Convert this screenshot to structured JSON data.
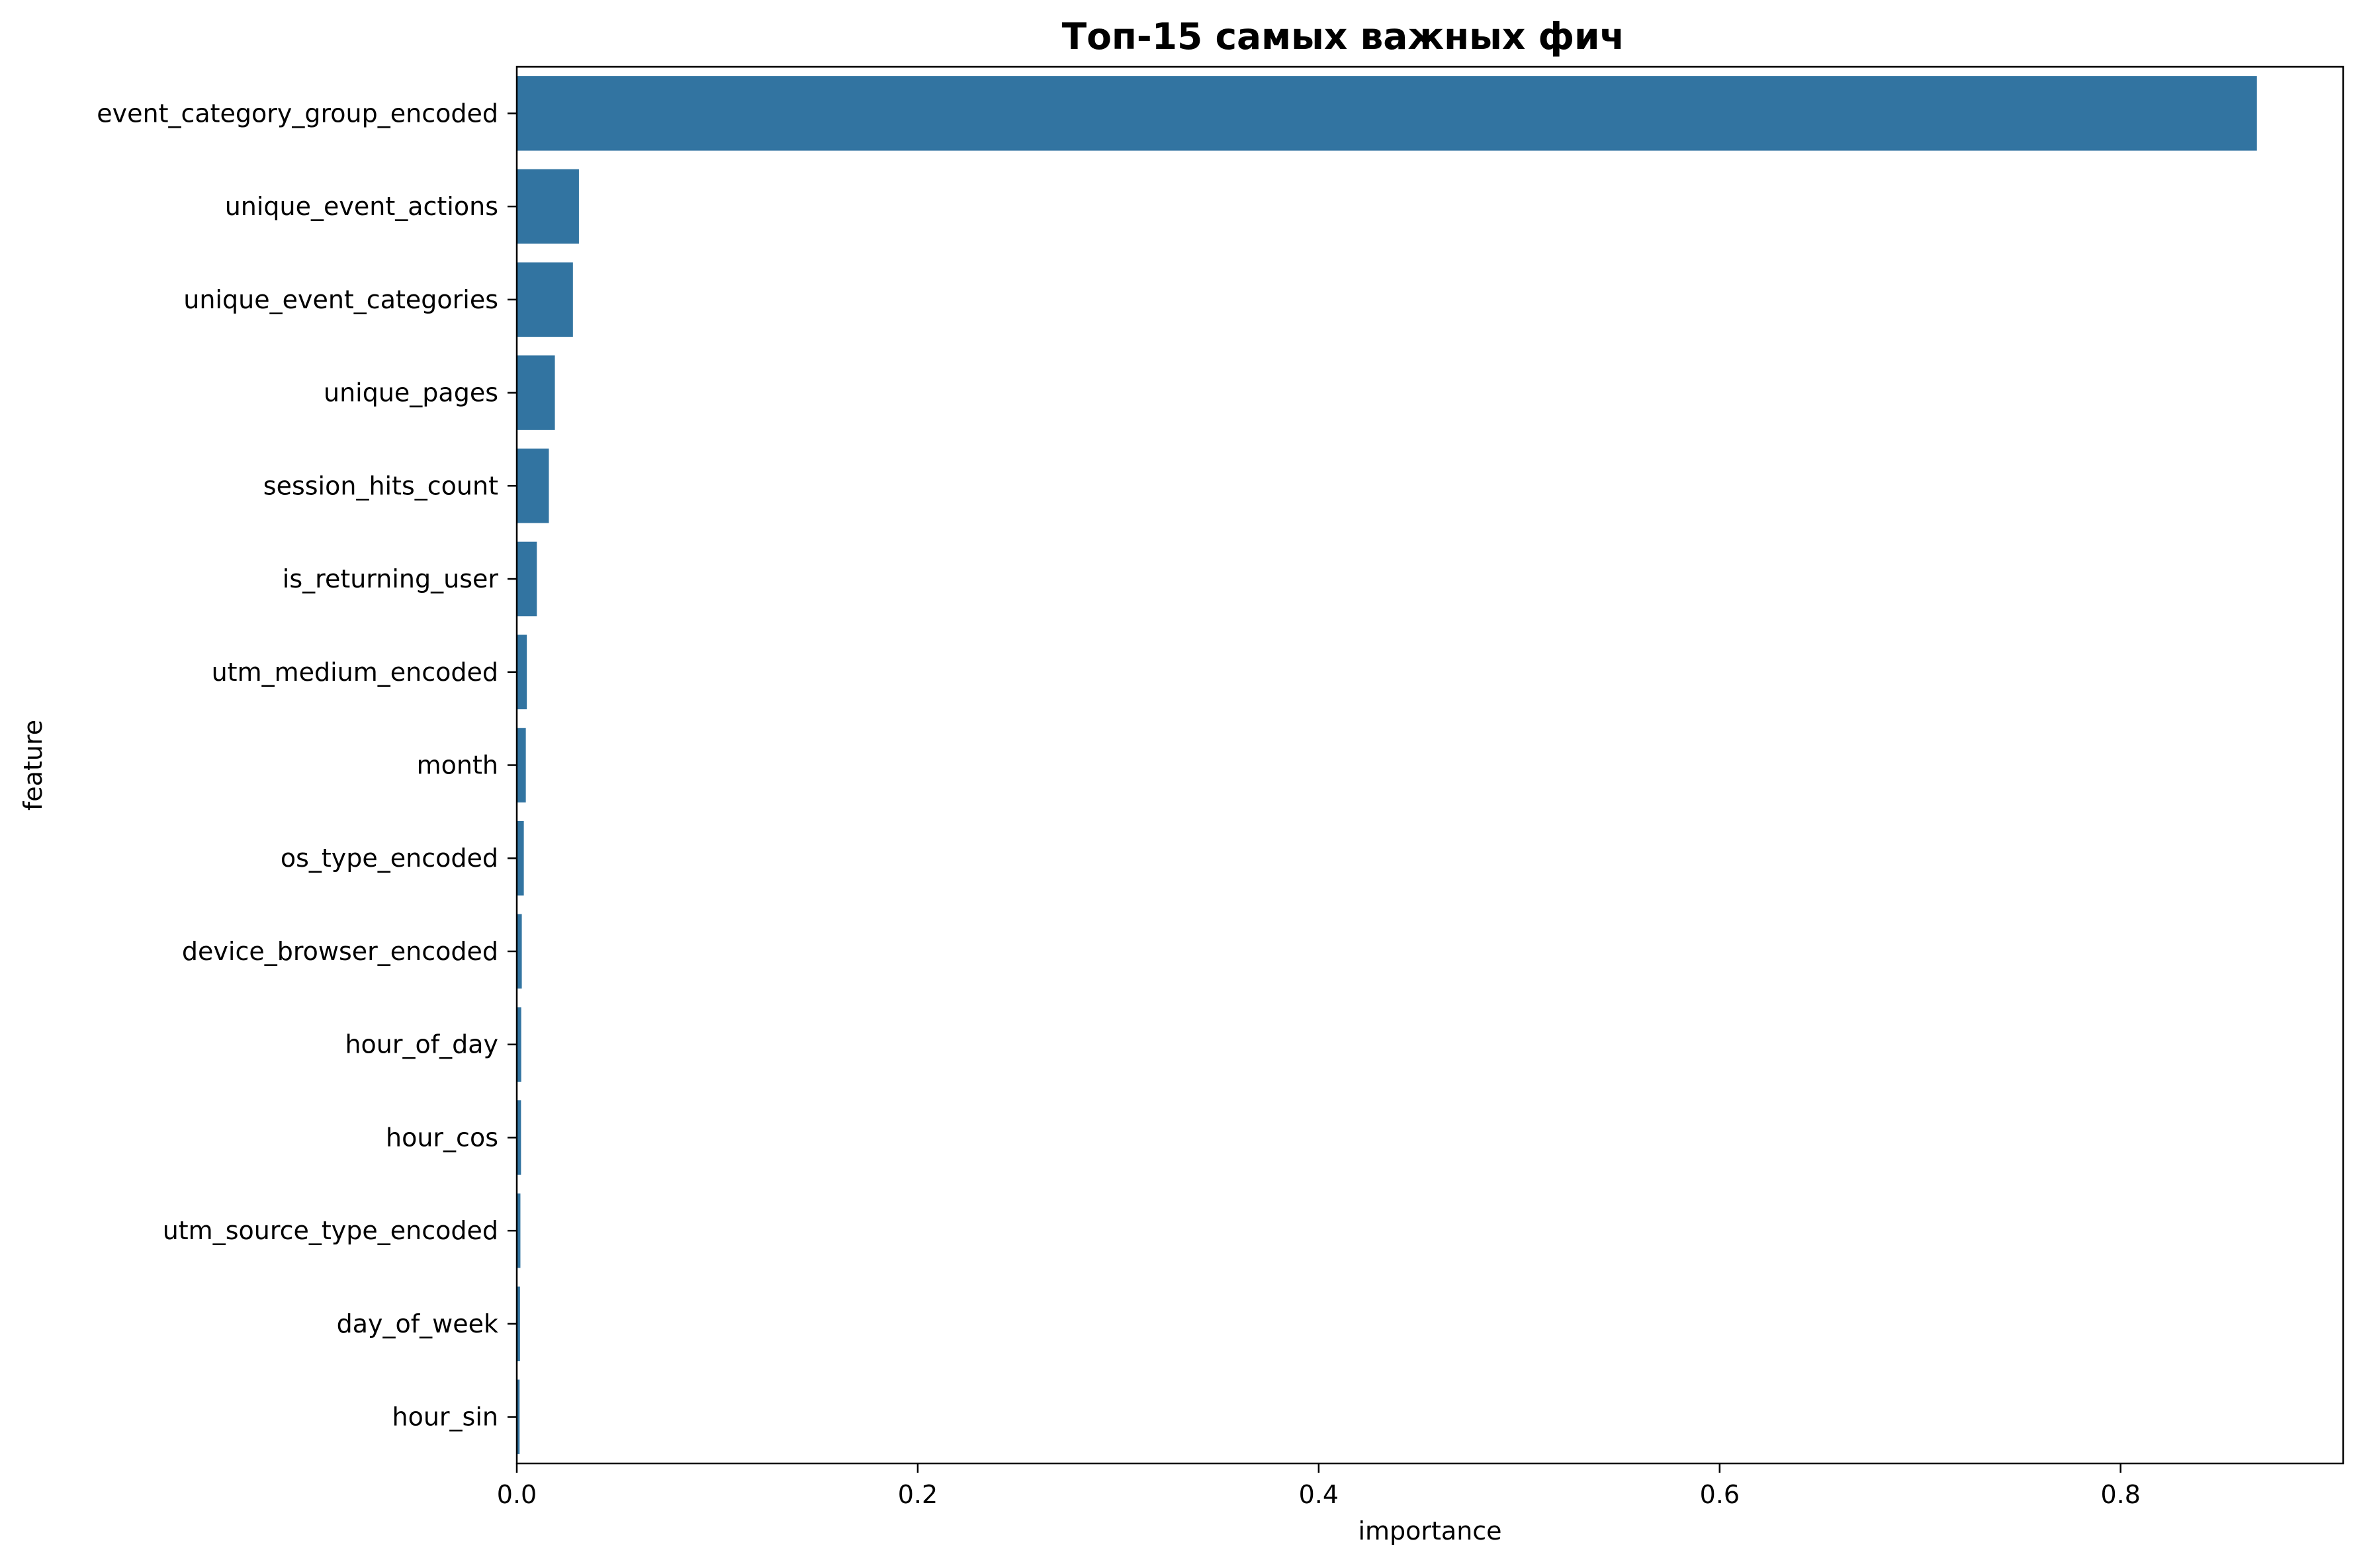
{
  "chart_data": {
    "type": "bar",
    "orientation": "horizontal",
    "title": "Топ-15 самых важных фич",
    "xlabel": "importance",
    "ylabel": "feature",
    "categories": [
      "event_category_group_encoded",
      "unique_event_actions",
      "unique_event_categories",
      "unique_pages",
      "session_hits_count",
      "is_returning_user",
      "utm_medium_encoded",
      "month",
      "os_type_encoded",
      "device_browser_encoded",
      "hour_of_day",
      "hour_cos",
      "utm_source_type_encoded",
      "day_of_week",
      "hour_sin"
    ],
    "values": [
      0.868,
      0.031,
      0.028,
      0.019,
      0.016,
      0.01,
      0.005,
      0.0045,
      0.0035,
      0.0025,
      0.0022,
      0.0021,
      0.0018,
      0.0016,
      0.0014
    ],
    "xlim": [
      0,
      0.911
    ],
    "xticks": [
      0.0,
      0.2,
      0.4,
      0.6,
      0.8
    ],
    "xtick_labels": [
      "0.0",
      "0.2",
      "0.4",
      "0.6",
      "0.8"
    ],
    "bar_color": "#3274a1",
    "grid": false,
    "legend": false
  }
}
